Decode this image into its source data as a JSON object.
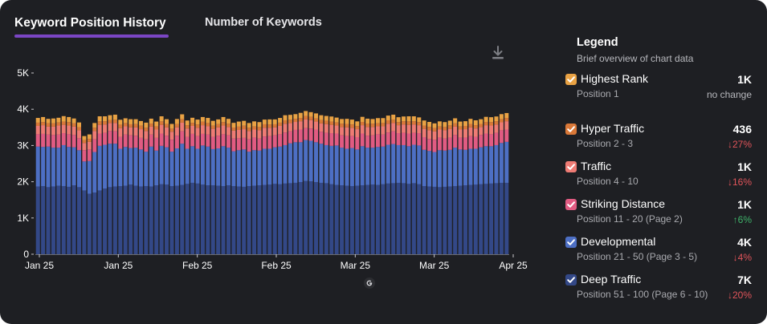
{
  "tabs": [
    {
      "label": "Keyword Position History",
      "active": true
    },
    {
      "label": "Number of Keywords",
      "active": false
    }
  ],
  "download_icon": "download-icon",
  "source_icon": "google-icon",
  "legend": {
    "title": "Legend",
    "subtitle": "Brief overview of chart data",
    "items": [
      {
        "name": "Highest Rank",
        "position": "Position 1",
        "value": "1K",
        "change": "no change",
        "direction": "none",
        "color": "#e9a244"
      },
      {
        "name": "Hyper Traffic",
        "position": "Position 2 - 3",
        "value": "436",
        "change": "27%",
        "direction": "down",
        "color": "#d97838"
      },
      {
        "name": "Traffic",
        "position": "Position 4 - 10",
        "value": "1K",
        "change": "16%",
        "direction": "down",
        "color": "#ee7b74"
      },
      {
        "name": "Striking Distance",
        "position": "Position 11 - 20 (Page 2)",
        "value": "1K",
        "change": "6%",
        "direction": "up",
        "color": "#e15b82"
      },
      {
        "name": "Developmental",
        "position": "Position 21 - 50 (Page 3 - 5)",
        "value": "4K",
        "change": "4%",
        "direction": "down",
        "color": "#4d6fc4"
      },
      {
        "name": "Deep Traffic",
        "position": "Position 51 - 100 (Page 6 - 10)",
        "value": "7K",
        "change": "20%",
        "direction": "down",
        "color": "#334887"
      }
    ]
  },
  "colors": {
    "down": "#e0545a",
    "up": "#3fb36a",
    "axis_text": "#ffffff",
    "card_bg": "#1e1f23"
  },
  "chart_data": {
    "type": "bar",
    "stacked": true,
    "y_ticks": [
      "0",
      "1K",
      "2K",
      "3K",
      "4K",
      "5K"
    ],
    "ylim": [
      0,
      5000
    ],
    "x_tick_labels": [
      "Jan 25",
      "Jan 25",
      "Feb 25",
      "Feb 25",
      "Mar 25",
      "Mar 25",
      "Apr 25"
    ],
    "series": [
      {
        "name": "Deep Traffic",
        "color": "#334887",
        "values": [
          1870,
          1880,
          1850,
          1870,
          1890,
          1880,
          1860,
          1900,
          1850,
          1760,
          1670,
          1700,
          1760,
          1810,
          1850,
          1870,
          1880,
          1890,
          1920,
          1890,
          1870,
          1880,
          1870,
          1900,
          1930,
          1920,
          1880,
          1890,
          1910,
          1940,
          1970,
          1950,
          1920,
          1900,
          1900,
          1890,
          1880,
          1900,
          1880,
          1870,
          1860,
          1880,
          1890,
          1900,
          1910,
          1920,
          1940,
          1930,
          1950,
          1960,
          1970,
          1990,
          2020,
          2010,
          1990,
          1970,
          1960,
          1930,
          1910,
          1900,
          1890,
          1880,
          1890,
          1900,
          1910,
          1920,
          1910,
          1930,
          1950,
          1960,
          1970,
          1960,
          1940,
          1960,
          1930,
          1880,
          1870,
          1860,
          1850,
          1860,
          1870,
          1880,
          1890,
          1900,
          1910,
          1920,
          1930,
          1940,
          1950,
          1960,
          1970,
          1970
        ]
      },
      {
        "name": "Developmental",
        "color": "#4d6fc4",
        "values": [
          1100,
          1080,
          1120,
          1070,
          1050,
          1130,
          1100,
          1050,
          1020,
          800,
          900,
          1120,
          1230,
          1210,
          1200,
          1180,
          1030,
          1070,
          1010,
          1050,
          1020,
          950,
          1100,
          960,
          1060,
          1030,
          950,
          1030,
          1140,
          970,
          1010,
          960,
          1080,
          1070,
          1000,
          1030,
          1100,
          1040,
          960,
          1000,
          1030,
          950,
          980,
          960,
          1000,
          990,
          1010,
          1040,
          1060,
          1100,
          1120,
          1100,
          1130,
          1120,
          1100,
          1080,
          1050,
          1060,
          1090,
          1040,
          1020,
          1050,
          1000,
          1080,
          1030,
          1020,
          1050,
          1040,
          1070,
          1080,
          1040,
          1050,
          1040,
          1060,
          1070,
          1000,
          980,
          960,
          1020,
          1000,
          1010,
          1060,
          1000,
          980,
          1000,
          990,
          1020,
          1040,
          1030,
          1050,
          1100,
          1130
        ]
      },
      {
        "name": "Striking Distance",
        "color": "#e15b82",
        "values": [
          340,
          360,
          330,
          350,
          360,
          330,
          350,
          340,
          330,
          310,
          320,
          350,
          340,
          330,
          350,
          340,
          330,
          340,
          350,
          330,
          320,
          340,
          330,
          350,
          340,
          320,
          330,
          350,
          340,
          330,
          340,
          350,
          320,
          330,
          340,
          350,
          330,
          340,
          350,
          330,
          320,
          340,
          350,
          330,
          340,
          350,
          330,
          340,
          350,
          330,
          340,
          350,
          330,
          340,
          350,
          330,
          340,
          350,
          330,
          340,
          350,
          330,
          340,
          350,
          330,
          340,
          350,
          330,
          340,
          350,
          330,
          340,
          350,
          330,
          340,
          350,
          330,
          340,
          350,
          330,
          340,
          350,
          330,
          340,
          350,
          330,
          340,
          350,
          330,
          340,
          350,
          340
        ]
      },
      {
        "name": "Traffic",
        "color": "#ee7b74",
        "values": [
          230,
          240,
          220,
          230,
          250,
          230,
          240,
          230,
          220,
          200,
          210,
          230,
          240,
          230,
          220,
          230,
          240,
          230,
          220,
          230,
          240,
          230,
          220,
          230,
          240,
          230,
          220,
          230,
          240,
          230,
          220,
          230,
          240,
          230,
          220,
          230,
          240,
          230,
          220,
          230,
          240,
          230,
          220,
          230,
          240,
          230,
          220,
          230,
          240,
          230,
          220,
          230,
          240,
          230,
          220,
          230,
          240,
          230,
          220,
          230,
          240,
          230,
          220,
          230,
          240,
          230,
          220,
          230,
          240,
          230,
          220,
          230,
          240,
          230,
          220,
          230,
          240,
          230,
          220,
          230,
          240,
          230,
          220,
          230,
          240,
          230,
          220,
          230,
          240,
          230,
          220,
          230
        ]
      },
      {
        "name": "Hyper Traffic",
        "color": "#d97838",
        "values": [
          90,
          85,
          95,
          90,
          85,
          90,
          95,
          90,
          85,
          80,
          85,
          90,
          95,
          90,
          85,
          90,
          95,
          90,
          85,
          90,
          95,
          90,
          85,
          90,
          95,
          90,
          85,
          90,
          95,
          90,
          85,
          90,
          95,
          90,
          85,
          90,
          95,
          90,
          85,
          90,
          95,
          90,
          85,
          90,
          95,
          90,
          85,
          90,
          95,
          90,
          85,
          90,
          95,
          90,
          85,
          90,
          95,
          90,
          85,
          90,
          95,
          90,
          85,
          90,
          95,
          90,
          85,
          90,
          95,
          90,
          85,
          90,
          95,
          90,
          85,
          90,
          95,
          90,
          85,
          90,
          95,
          90,
          85,
          90,
          95,
          90,
          85,
          90,
          95,
          90,
          85,
          90
        ]
      },
      {
        "name": "Highest Rank",
        "color": "#e9a244",
        "values": [
          130,
          140,
          120,
          135,
          130,
          150,
          140,
          135,
          130,
          110,
          120,
          130,
          140,
          135,
          130,
          140,
          135,
          130,
          140,
          135,
          130,
          140,
          135,
          130,
          140,
          135,
          130,
          140,
          135,
          130,
          140,
          135,
          130,
          140,
          135,
          130,
          140,
          135,
          130,
          140,
          135,
          130,
          140,
          135,
          130,
          140,
          135,
          130,
          140,
          135,
          130,
          140,
          135,
          130,
          140,
          135,
          130,
          140,
          135,
          130,
          140,
          135,
          130,
          140,
          135,
          130,
          140,
          135,
          130,
          140,
          135,
          130,
          140,
          135,
          130,
          140,
          135,
          130,
          140,
          135,
          130,
          140,
          135,
          130,
          140,
          135,
          130,
          140,
          135,
          130,
          140,
          135
        ]
      }
    ]
  }
}
